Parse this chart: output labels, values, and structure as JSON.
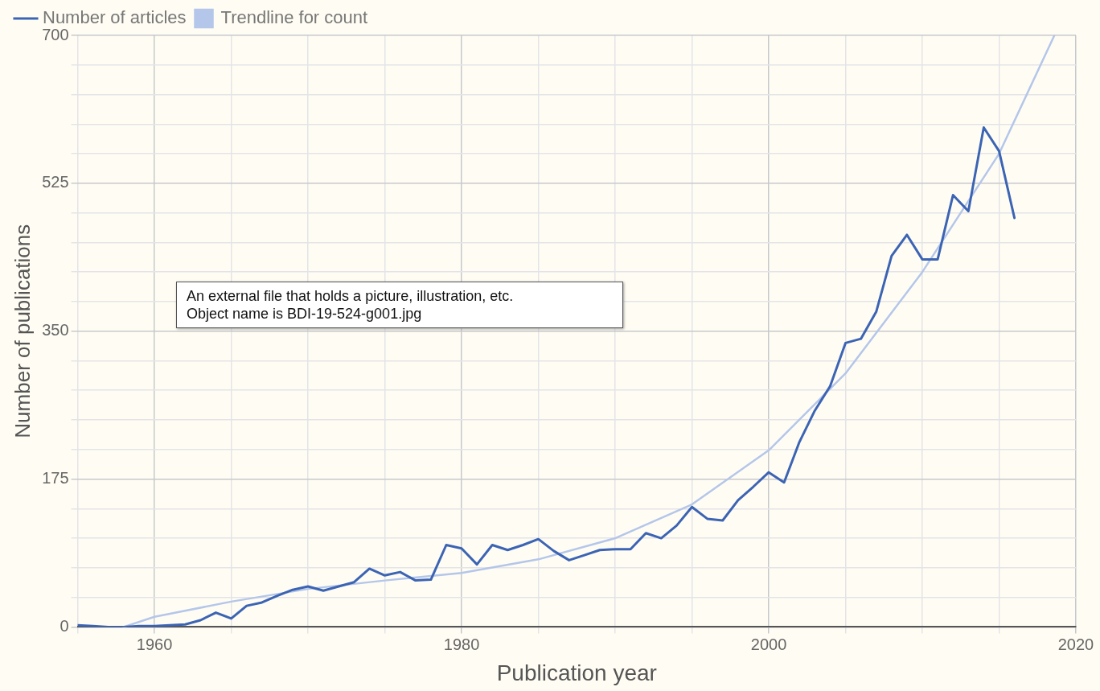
{
  "chart_data": {
    "type": "line",
    "xlabel": "Publication year",
    "ylabel": "Number of publications",
    "x": [
      1955,
      1956,
      1957,
      1958,
      1959,
      1960,
      1961,
      1962,
      1963,
      1964,
      1965,
      1966,
      1967,
      1968,
      1969,
      1970,
      1971,
      1972,
      1973,
      1974,
      1975,
      1976,
      1977,
      1978,
      1979,
      1980,
      1981,
      1982,
      1983,
      1984,
      1985,
      1986,
      1987,
      1988,
      1989,
      1990,
      1991,
      1992,
      1993,
      1994,
      1995,
      1996,
      1997,
      1998,
      1999,
      2000,
      2001,
      2002,
      2003,
      2004,
      2005,
      2006,
      2007,
      2008,
      2009,
      2010,
      2011,
      2012,
      2013,
      2014,
      2015,
      2016
    ],
    "series": [
      {
        "name": "Number of articles",
        "color": "#3c64b4",
        "values": [
          2,
          1,
          0,
          0,
          1,
          1,
          2,
          3,
          8,
          17,
          10,
          25,
          29,
          37,
          44,
          48,
          43,
          48,
          53,
          69,
          61,
          65,
          55,
          56,
          97,
          93,
          74,
          97,
          91,
          97,
          104,
          90,
          79,
          85,
          91,
          92,
          92,
          111,
          105,
          120,
          142,
          128,
          126,
          150,
          166,
          183,
          171,
          219,
          256,
          285,
          336,
          341,
          373,
          439,
          464,
          435,
          435,
          511,
          492,
          591,
          563,
          484
        ]
      },
      {
        "name": "Trendline for count",
        "color": "#b4c6ea",
        "x": [
          1958,
          1960,
          1965,
          1970,
          1975,
          1980,
          1985,
          1990,
          1995,
          2000,
          2005,
          2010,
          2015,
          2018.6
        ],
        "values": [
          0,
          12,
          30,
          45,
          55,
          64,
          80,
          105,
          145,
          209,
          300,
          420,
          560,
          700
        ]
      }
    ],
    "xlim": [
      1955,
      2020
    ],
    "xticks": [
      {
        "value": 1955,
        "label": null
      },
      1960,
      {
        "value": 1965,
        "label": null
      },
      {
        "value": 1970,
        "label": null
      },
      {
        "value": 1975,
        "label": null
      },
      1980,
      {
        "value": 1985,
        "label": null
      },
      {
        "value": 1990,
        "label": null
      },
      {
        "value": 1995,
        "label": null
      },
      2000,
      {
        "value": 2005,
        "label": null
      },
      {
        "value": 2010,
        "label": null
      },
      {
        "value": 2015,
        "label": null
      },
      2020
    ],
    "ylim": [
      0,
      700
    ],
    "yticks": [
      0,
      {
        "value": 35,
        "label": null
      },
      {
        "value": 70,
        "label": null
      },
      {
        "value": 105,
        "label": null
      },
      {
        "value": 140,
        "label": null
      },
      175,
      {
        "value": 210,
        "label": null
      },
      {
        "value": 245,
        "label": null
      },
      {
        "value": 280,
        "label": null
      },
      {
        "value": 315,
        "label": null
      },
      350,
      {
        "value": 385,
        "label": null
      },
      {
        "value": 420,
        "label": null
      },
      {
        "value": 455,
        "label": null
      },
      {
        "value": 490,
        "label": null
      },
      525,
      {
        "value": 560,
        "label": null
      },
      {
        "value": 595,
        "label": null
      },
      {
        "value": 630,
        "label": null
      },
      {
        "value": 665,
        "label": null
      },
      700
    ],
    "grid": true,
    "legend": "top",
    "marker": "none",
    "line_style": "solid",
    "annotations": [
      "An external file that holds a picture, illustration, etc.\nObject name is BDI-19-524-g001.jpg"
    ]
  }
}
